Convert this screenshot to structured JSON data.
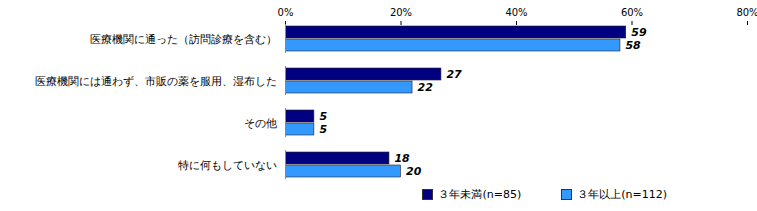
{
  "chart_data": {
    "type": "bar",
    "orientation": "horizontal",
    "categories": [
      "医療機関に通った（訪問診療を含む）",
      "医療機関には通わず、市販の薬を服用、湿布した",
      "その他",
      "特に何もしていない"
    ],
    "series": [
      {
        "name": "３年未満(n=85)",
        "color": "#000080",
        "values": [
          59,
          27,
          5,
          18
        ]
      },
      {
        "name": "３年以上(n=112)",
        "color": "#3399ff",
        "values": [
          58,
          22,
          5,
          20
        ]
      }
    ],
    "xlim": [
      0,
      80
    ],
    "xticks": [
      {
        "value": 0,
        "label": "0%"
      },
      {
        "value": 20,
        "label": "20%"
      },
      {
        "value": 40,
        "label": "40%"
      },
      {
        "value": 60,
        "label": "60%"
      },
      {
        "value": 80,
        "label": "80%"
      }
    ],
    "data_labels": true,
    "grid": false,
    "legend": "bottom"
  }
}
